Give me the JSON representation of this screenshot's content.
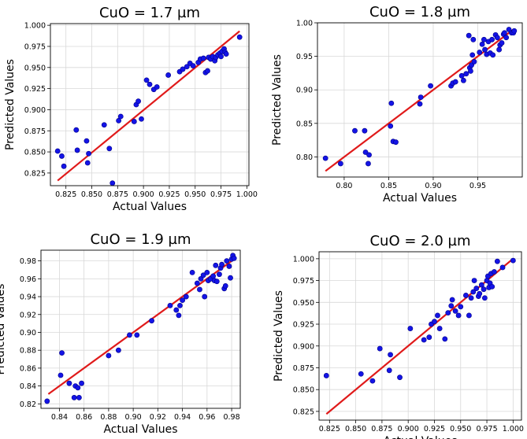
{
  "chart_data": [
    {
      "type": "scatter",
      "title": "CuO = 1.7 µm",
      "xlabel": "Actual Values",
      "ylabel": "Predicted Values",
      "xlim": [
        0.81,
        1.002
      ],
      "ylim": [
        0.81,
        1.002
      ],
      "xticks": [
        0.825,
        0.85,
        0.875,
        0.9,
        0.925,
        0.95,
        0.975,
        1.0
      ],
      "yticks": [
        0.825,
        0.85,
        0.875,
        0.9,
        0.925,
        0.95,
        0.975,
        1.0
      ],
      "xtick_labels": [
        "0.825",
        "0.850",
        "0.875",
        "0.900",
        "0.925",
        "0.950",
        "0.975",
        "1.000"
      ],
      "ytick_labels": [
        "0.825",
        "0.850",
        "0.875",
        "0.900",
        "0.925",
        "0.950",
        "0.975",
        "1.000"
      ],
      "grid": true,
      "fit_line": [
        [
          0.817,
          0.816
        ],
        [
          0.993,
          0.993
        ]
      ],
      "points": [
        [
          0.817,
          0.851
        ],
        [
          0.821,
          0.845
        ],
        [
          0.823,
          0.833
        ],
        [
          0.835,
          0.876
        ],
        [
          0.836,
          0.852
        ],
        [
          0.845,
          0.863
        ],
        [
          0.846,
          0.837
        ],
        [
          0.847,
          0.848
        ],
        [
          0.862,
          0.882
        ],
        [
          0.867,
          0.854
        ],
        [
          0.87,
          0.813
        ],
        [
          0.876,
          0.887
        ],
        [
          0.878,
          0.892
        ],
        [
          0.891,
          0.886
        ],
        [
          0.893,
          0.906
        ],
        [
          0.895,
          0.91
        ],
        [
          0.898,
          0.889
        ],
        [
          0.903,
          0.935
        ],
        [
          0.906,
          0.93
        ],
        [
          0.91,
          0.924
        ],
        [
          0.913,
          0.927
        ],
        [
          0.924,
          0.941
        ],
        [
          0.935,
          0.945
        ],
        [
          0.938,
          0.948
        ],
        [
          0.942,
          0.951
        ],
        [
          0.945,
          0.955
        ],
        [
          0.948,
          0.952
        ],
        [
          0.953,
          0.956
        ],
        [
          0.955,
          0.96
        ],
        [
          0.958,
          0.961
        ],
        [
          0.96,
          0.944
        ],
        [
          0.962,
          0.946
        ],
        [
          0.963,
          0.962
        ],
        [
          0.965,
          0.96
        ],
        [
          0.967,
          0.963
        ],
        [
          0.969,
          0.958
        ],
        [
          0.97,
          0.962
        ],
        [
          0.972,
          0.965
        ],
        [
          0.974,
          0.967
        ],
        [
          0.975,
          0.963
        ],
        [
          0.976,
          0.969
        ],
        [
          0.978,
          0.972
        ],
        [
          0.979,
          0.968
        ],
        [
          0.98,
          0.966
        ],
        [
          0.993,
          0.986
        ]
      ]
    },
    {
      "type": "scatter",
      "title": "CuO = 1.8 µm",
      "xlabel": "Actual Values",
      "ylabel": "Predicted Values",
      "xlim": [
        0.77,
        1.0
      ],
      "ylim": [
        0.77,
        1.0
      ],
      "xticks": [
        0.8,
        0.85,
        0.9,
        0.95
      ],
      "yticks": [
        0.8,
        0.85,
        0.9,
        0.95,
        1.0
      ],
      "xtick_labels": [
        "0.80",
        "0.85",
        "0.90",
        "0.95"
      ],
      "ytick_labels": [
        "0.80",
        "0.85",
        "0.90",
        "0.95",
        "1.00"
      ],
      "grid": true,
      "fit_line": [
        [
          0.779,
          0.779
        ],
        [
          0.99,
          0.99
        ]
      ],
      "points": [
        [
          0.779,
          0.798
        ],
        [
          0.796,
          0.79
        ],
        [
          0.812,
          0.839
        ],
        [
          0.823,
          0.839
        ],
        [
          0.824,
          0.807
        ],
        [
          0.827,
          0.79
        ],
        [
          0.828,
          0.803
        ],
        [
          0.852,
          0.846
        ],
        [
          0.853,
          0.88
        ],
        [
          0.855,
          0.823
        ],
        [
          0.858,
          0.822
        ],
        [
          0.885,
          0.879
        ],
        [
          0.886,
          0.889
        ],
        [
          0.897,
          0.906
        ],
        [
          0.92,
          0.906
        ],
        [
          0.922,
          0.91
        ],
        [
          0.925,
          0.912
        ],
        [
          0.932,
          0.921
        ],
        [
          0.934,
          0.914
        ],
        [
          0.937,
          0.924
        ],
        [
          0.94,
          0.981
        ],
        [
          0.941,
          0.933
        ],
        [
          0.942,
          0.928
        ],
        [
          0.943,
          0.937
        ],
        [
          0.944,
          0.952
        ],
        [
          0.945,
          0.975
        ],
        [
          0.946,
          0.942
        ],
        [
          0.952,
          0.956
        ],
        [
          0.955,
          0.968
        ],
        [
          0.957,
          0.975
        ],
        [
          0.958,
          0.96
        ],
        [
          0.96,
          0.953
        ],
        [
          0.962,
          0.972
        ],
        [
          0.964,
          0.955
        ],
        [
          0.966,
          0.975
        ],
        [
          0.967,
          0.952
        ],
        [
          0.97,
          0.982
        ],
        [
          0.972,
          0.978
        ],
        [
          0.974,
          0.96
        ],
        [
          0.975,
          0.967
        ],
        [
          0.977,
          0.97
        ],
        [
          0.979,
          0.983
        ],
        [
          0.98,
          0.985
        ],
        [
          0.982,
          0.978
        ],
        [
          0.985,
          0.99
        ],
        [
          0.988,
          0.985
        ],
        [
          0.99,
          0.985
        ],
        [
          0.991,
          0.988
        ]
      ]
    },
    {
      "type": "scatter",
      "title": "CuO = 1.9 µm",
      "xlabel": "Actual Values",
      "ylabel": "Predicted Values",
      "xlim": [
        0.825,
        0.987
      ],
      "ylim": [
        0.815,
        0.992
      ],
      "xticks": [
        0.84,
        0.86,
        0.88,
        0.9,
        0.92,
        0.94,
        0.96,
        0.98
      ],
      "yticks": [
        0.82,
        0.84,
        0.86,
        0.88,
        0.9,
        0.92,
        0.94,
        0.96,
        0.98
      ],
      "xtick_labels": [
        "0.84",
        "0.86",
        "0.88",
        "0.90",
        "0.92",
        "0.94",
        "0.96",
        "0.98"
      ],
      "ytick_labels": [
        "0.82",
        "0.84",
        "0.86",
        "0.88",
        "0.90",
        "0.92",
        "0.94",
        "0.96",
        "0.98"
      ],
      "grid": true,
      "fit_line": [
        [
          0.831,
          0.831
        ],
        [
          0.982,
          0.982
        ]
      ],
      "points": [
        [
          0.83,
          0.823
        ],
        [
          0.841,
          0.852
        ],
        [
          0.842,
          0.877
        ],
        [
          0.848,
          0.843
        ],
        [
          0.852,
          0.827
        ],
        [
          0.853,
          0.84
        ],
        [
          0.855,
          0.838
        ],
        [
          0.856,
          0.827
        ],
        [
          0.858,
          0.843
        ],
        [
          0.88,
          0.874
        ],
        [
          0.888,
          0.88
        ],
        [
          0.897,
          0.897
        ],
        [
          0.903,
          0.897
        ],
        [
          0.915,
          0.913
        ],
        [
          0.93,
          0.93
        ],
        [
          0.935,
          0.925
        ],
        [
          0.937,
          0.919
        ],
        [
          0.938,
          0.93
        ],
        [
          0.94,
          0.936
        ],
        [
          0.943,
          0.94
        ],
        [
          0.948,
          0.967
        ],
        [
          0.952,
          0.955
        ],
        [
          0.954,
          0.948
        ],
        [
          0.955,
          0.96
        ],
        [
          0.957,
          0.964
        ],
        [
          0.958,
          0.94
        ],
        [
          0.96,
          0.967
        ],
        [
          0.961,
          0.958
        ],
        [
          0.963,
          0.96
        ],
        [
          0.965,
          0.963
        ],
        [
          0.966,
          0.958
        ],
        [
          0.967,
          0.975
        ],
        [
          0.968,
          0.957
        ],
        [
          0.97,
          0.965
        ],
        [
          0.971,
          0.972
        ],
        [
          0.972,
          0.976
        ],
        [
          0.974,
          0.949
        ],
        [
          0.975,
          0.952
        ],
        [
          0.976,
          0.98
        ],
        [
          0.978,
          0.974
        ],
        [
          0.979,
          0.961
        ],
        [
          0.98,
          0.982
        ],
        [
          0.981,
          0.986
        ],
        [
          0.982,
          0.983
        ]
      ]
    },
    {
      "type": "scatter",
      "title": "CuO = 2.0 µm",
      "xlabel": "Actual Values",
      "ylabel": "Predicted Values",
      "xlim": [
        0.815,
        1.008
      ],
      "ylim": [
        0.815,
        1.008
      ],
      "xticks": [
        0.825,
        0.85,
        0.875,
        0.9,
        0.925,
        0.95,
        0.975,
        1.0
      ],
      "yticks": [
        0.825,
        0.85,
        0.875,
        0.9,
        0.925,
        0.95,
        0.975,
        1.0
      ],
      "xtick_labels": [
        "0.825",
        "0.850",
        "0.875",
        "0.900",
        "0.925",
        "0.950",
        "0.975",
        "1.000"
      ],
      "ytick_labels": [
        "0.825",
        "0.850",
        "0.875",
        "0.900",
        "0.925",
        "0.950",
        "0.975",
        "1.000"
      ],
      "grid": true,
      "fit_line": [
        [
          0.822,
          0.822
        ],
        [
          1.0,
          1.0
        ]
      ],
      "points": [
        [
          0.822,
          0.866
        ],
        [
          0.855,
          0.868
        ],
        [
          0.866,
          0.86
        ],
        [
          0.873,
          0.897
        ],
        [
          0.882,
          0.872
        ],
        [
          0.883,
          0.89
        ],
        [
          0.892,
          0.864
        ],
        [
          0.902,
          0.92
        ],
        [
          0.915,
          0.907
        ],
        [
          0.92,
          0.91
        ],
        [
          0.922,
          0.925
        ],
        [
          0.925,
          0.928
        ],
        [
          0.928,
          0.935
        ],
        [
          0.93,
          0.92
        ],
        [
          0.935,
          0.908
        ],
        [
          0.938,
          0.938
        ],
        [
          0.941,
          0.946
        ],
        [
          0.942,
          0.953
        ],
        [
          0.945,
          0.94
        ],
        [
          0.948,
          0.935
        ],
        [
          0.95,
          0.945
        ],
        [
          0.955,
          0.958
        ],
        [
          0.958,
          0.935
        ],
        [
          0.96,
          0.955
        ],
        [
          0.962,
          0.962
        ],
        [
          0.963,
          0.975
        ],
        [
          0.965,
          0.966
        ],
        [
          0.967,
          0.957
        ],
        [
          0.968,
          0.96
        ],
        [
          0.97,
          0.97
        ],
        [
          0.972,
          0.965
        ],
        [
          0.973,
          0.955
        ],
        [
          0.975,
          0.975
        ],
        [
          0.976,
          0.98
        ],
        [
          0.977,
          0.967
        ],
        [
          0.978,
          0.972
        ],
        [
          0.979,
          0.983
        ],
        [
          0.98,
          0.968
        ],
        [
          0.982,
          0.985
        ],
        [
          0.985,
          0.997
        ],
        [
          0.99,
          0.99
        ],
        [
          1.0,
          0.998
        ]
      ]
    }
  ],
  "colors": {
    "point_fill": "#1414e6",
    "point_edge": "#00008b",
    "fit_line": "#e01a1a",
    "grid": "#d8d8d8",
    "axes": "#000000"
  }
}
